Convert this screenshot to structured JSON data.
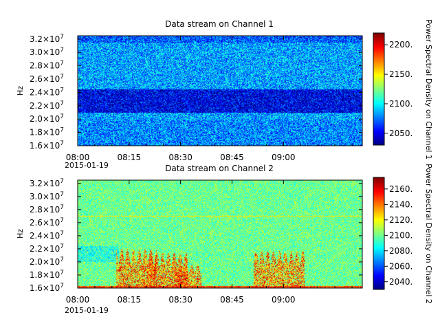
{
  "chart_data": [
    {
      "type": "heatmap",
      "title": "Data stream on Channel 1",
      "ylabel": "Hz",
      "colorbar_label": "Power Spectral Density on Channel 1",
      "x_ticks": [
        "08:00",
        "08:15",
        "08:30",
        "08:45",
        "09:00"
      ],
      "x_date_label": "2015-01-19",
      "x_range": [
        "08:00",
        "09:23"
      ],
      "y_ticks_mantissa": [
        "1.6",
        "1.8",
        "2.0",
        "2.2",
        "2.4",
        "2.6",
        "2.8",
        "3.0",
        "3.2"
      ],
      "y_tick_values": [
        16000000,
        18000000,
        20000000,
        22000000,
        24000000,
        26000000,
        28000000,
        30000000,
        32000000
      ],
      "y_exponent": "7",
      "ylim": [
        16000000,
        32500000
      ],
      "colorbar_ticks": [
        "2050.",
        "2100.",
        "2150.",
        "2200."
      ],
      "colorbar_tick_values": [
        2050,
        2100,
        2150,
        2200
      ],
      "colorbar_range": [
        2030,
        2220
      ],
      "colormap": "jet",
      "description_values": {
        "background_level": 2085,
        "band_22_24MHz_level": 2060
      }
    },
    {
      "type": "heatmap",
      "title": "Data stream on Channel 2",
      "ylabel": "Hz",
      "colorbar_label": "Power Spectral Density on Channel 2",
      "x_ticks": [
        "08:00",
        "08:15",
        "08:30",
        "08:45",
        "09:00"
      ],
      "x_date_label": "2015-01-19",
      "x_range": [
        "08:00",
        "09:23"
      ],
      "y_ticks_mantissa": [
        "1.6",
        "1.8",
        "2.0",
        "2.2",
        "2.4",
        "2.6",
        "2.8",
        "3.0",
        "3.2"
      ],
      "y_tick_values": [
        16000000,
        18000000,
        20000000,
        22000000,
        24000000,
        26000000,
        28000000,
        30000000,
        32000000
      ],
      "y_exponent": "7",
      "ylim": [
        16000000,
        32500000
      ],
      "colorbar_ticks": [
        "2040.",
        "2060.",
        "2080.",
        "2100.",
        "2120.",
        "2140.",
        "2160."
      ],
      "colorbar_tick_values": [
        2040,
        2060,
        2080,
        2100,
        2120,
        2140,
        2160
      ],
      "colorbar_range": [
        2030,
        2175
      ],
      "colormap": "jet",
      "description_values": {
        "background_level": 2100,
        "line_27MHz_level": 2125,
        "burst_peak_level": 2170
      }
    }
  ]
}
